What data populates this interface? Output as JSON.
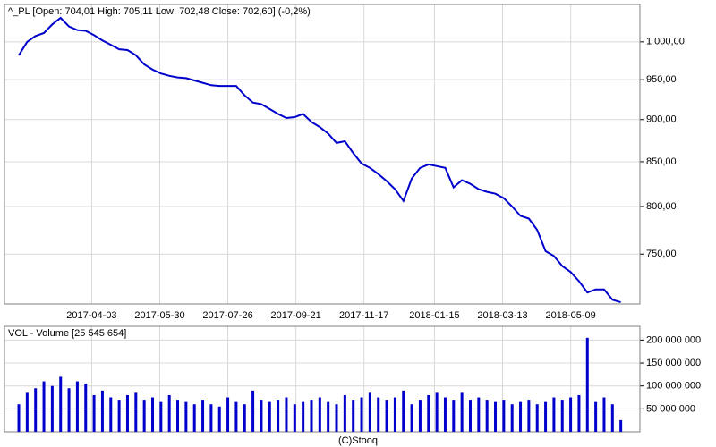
{
  "chart_data": [
    {
      "type": "line",
      "title": "^_PL [Open: 704,01  High: 705,11  Low: 702,48  Close: 702,60] (-0,2%)",
      "color": "#0000cc",
      "log": true,
      "grid": true,
      "x": [
        "2017-02-01",
        "2017-02-08",
        "2017-02-15",
        "2017-02-22",
        "2017-03-01",
        "2017-03-08",
        "2017-03-15",
        "2017-03-22",
        "2017-03-29",
        "2017-04-05",
        "2017-04-12",
        "2017-04-19",
        "2017-04-26",
        "2017-05-03",
        "2017-05-10",
        "2017-05-17",
        "2017-05-24",
        "2017-05-31",
        "2017-06-07",
        "2017-06-14",
        "2017-06-21",
        "2017-06-28",
        "2017-07-05",
        "2017-07-12",
        "2017-07-19",
        "2017-07-26",
        "2017-08-02",
        "2017-08-09",
        "2017-08-16",
        "2017-08-23",
        "2017-08-30",
        "2017-09-06",
        "2017-09-13",
        "2017-09-20",
        "2017-09-27",
        "2017-10-04",
        "2017-10-11",
        "2017-10-18",
        "2017-10-25",
        "2017-11-01",
        "2017-11-08",
        "2017-11-15",
        "2017-11-22",
        "2017-11-29",
        "2017-12-06",
        "2017-12-13",
        "2017-12-20",
        "2017-12-27",
        "2018-01-03",
        "2018-01-10",
        "2018-01-17",
        "2018-01-24",
        "2018-01-31",
        "2018-02-07",
        "2018-02-14",
        "2018-02-21",
        "2018-02-28",
        "2018-03-07",
        "2018-03-14",
        "2018-03-21",
        "2018-03-28",
        "2018-04-04",
        "2018-04-11",
        "2018-04-18",
        "2018-04-25",
        "2018-05-02",
        "2018-05-09",
        "2018-05-16",
        "2018-05-23",
        "2018-05-30",
        "2018-06-06",
        "2018-06-13",
        "2018-06-20"
      ],
      "values": [
        982,
        1000,
        1008,
        1012,
        1024,
        1033,
        1021,
        1016,
        1015,
        1009,
        1002,
        996,
        990,
        989,
        982,
        970,
        963,
        958,
        955,
        953,
        952,
        949,
        946,
        943,
        942,
        942,
        942,
        930,
        921,
        919,
        913,
        907,
        902,
        903,
        907,
        897,
        891,
        883,
        872,
        874,
        860,
        848,
        843,
        836,
        828,
        819,
        806,
        831,
        843,
        847,
        845,
        843,
        821,
        829,
        825,
        819,
        816,
        814,
        809,
        800,
        790,
        787,
        775,
        753,
        748,
        738,
        732,
        723,
        712,
        715,
        715,
        705,
        702.6
      ],
      "xlim": [
        "2017-01-20",
        "2018-07-06"
      ],
      "xticks": [
        "2017-04-03",
        "2017-05-30",
        "2017-07-26",
        "2017-09-21",
        "2017-11-17",
        "2018-01-15",
        "2018-03-13",
        "2018-05-09"
      ],
      "ylim": [
        701,
        1052
      ],
      "yticks": [
        {
          "value": 750,
          "label": "750,00"
        },
        {
          "value": 800,
          "label": "800,00"
        },
        {
          "value": 850,
          "label": "850,00"
        },
        {
          "value": 900,
          "label": "900,00"
        },
        {
          "value": 950,
          "label": "950,00"
        },
        {
          "value": 1000,
          "label": "1 000,00"
        }
      ]
    },
    {
      "type": "bar",
      "title": "VOL - Volume [25 545 654]",
      "color": "#0000cc",
      "grid": true,
      "x": [
        "2017-02-01",
        "2017-02-08",
        "2017-02-15",
        "2017-02-22",
        "2017-03-01",
        "2017-03-08",
        "2017-03-15",
        "2017-03-22",
        "2017-03-29",
        "2017-04-05",
        "2017-04-12",
        "2017-04-19",
        "2017-04-26",
        "2017-05-03",
        "2017-05-10",
        "2017-05-17",
        "2017-05-24",
        "2017-05-31",
        "2017-06-07",
        "2017-06-14",
        "2017-06-21",
        "2017-06-28",
        "2017-07-05",
        "2017-07-12",
        "2017-07-19",
        "2017-07-26",
        "2017-08-02",
        "2017-08-09",
        "2017-08-16",
        "2017-08-23",
        "2017-08-30",
        "2017-09-06",
        "2017-09-13",
        "2017-09-20",
        "2017-09-27",
        "2017-10-04",
        "2017-10-11",
        "2017-10-18",
        "2017-10-25",
        "2017-11-01",
        "2017-11-08",
        "2017-11-15",
        "2017-11-22",
        "2017-11-29",
        "2017-12-06",
        "2017-12-13",
        "2017-12-20",
        "2017-12-27",
        "2018-01-03",
        "2018-01-10",
        "2018-01-17",
        "2018-01-24",
        "2018-01-31",
        "2018-02-07",
        "2018-02-14",
        "2018-02-21",
        "2018-02-28",
        "2018-03-07",
        "2018-03-14",
        "2018-03-21",
        "2018-03-28",
        "2018-04-04",
        "2018-04-11",
        "2018-04-18",
        "2018-04-25",
        "2018-05-02",
        "2018-05-09",
        "2018-05-16",
        "2018-05-23",
        "2018-05-30",
        "2018-06-06",
        "2018-06-13",
        "2018-06-20"
      ],
      "values": [
        60000000,
        85000000,
        95000000,
        110000000,
        100000000,
        120000000,
        95000000,
        110000000,
        105000000,
        80000000,
        90000000,
        75000000,
        70000000,
        80000000,
        85000000,
        70000000,
        75000000,
        65000000,
        80000000,
        70000000,
        65000000,
        60000000,
        70000000,
        60000000,
        55000000,
        75000000,
        65000000,
        60000000,
        90000000,
        70000000,
        65000000,
        70000000,
        75000000,
        60000000,
        65000000,
        70000000,
        75000000,
        65000000,
        60000000,
        80000000,
        70000000,
        75000000,
        85000000,
        75000000,
        70000000,
        75000000,
        90000000,
        60000000,
        70000000,
        80000000,
        85000000,
        75000000,
        70000000,
        85000000,
        70000000,
        75000000,
        70000000,
        65000000,
        70000000,
        60000000,
        65000000,
        70000000,
        60000000,
        65000000,
        75000000,
        70000000,
        75000000,
        80000000,
        205000000,
        65000000,
        75000000,
        60000000,
        25545654
      ],
      "xlim": [
        "2017-01-20",
        "2018-07-06"
      ],
      "ylim": [
        0,
        230000000
      ],
      "yticks": [
        {
          "value": 50000000,
          "label": "50 000 000"
        },
        {
          "value": 100000000,
          "label": "100 000 000"
        },
        {
          "value": 150000000,
          "label": "150 000 000"
        },
        {
          "value": 200000000,
          "label": "200 000 000"
        }
      ]
    }
  ],
  "footer": "(C)Stooq"
}
